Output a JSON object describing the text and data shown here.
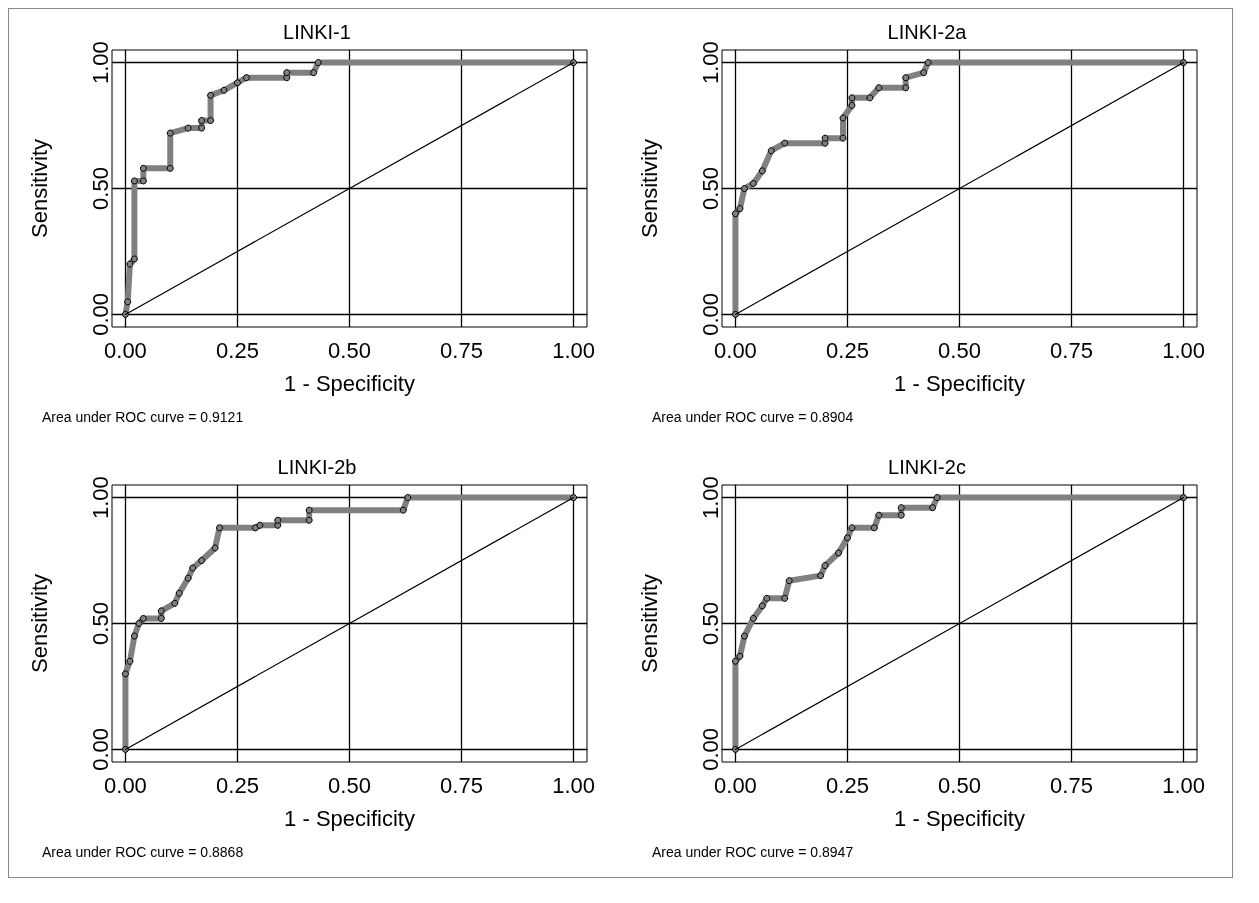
{
  "chart_data": [
    {
      "type": "line",
      "title": "LINKI-1",
      "xlabel": "1 - Specificity",
      "ylabel": "Sensitivity",
      "xlim": [
        -0.03,
        1.03
      ],
      "ylim": [
        -0.05,
        1.05
      ],
      "xticks": [
        {
          "value": 0,
          "label": "0.00"
        },
        {
          "value": 0.25,
          "label": "0.25"
        },
        {
          "value": 0.5,
          "label": "0.50"
        },
        {
          "value": 0.75,
          "label": "0.75"
        },
        {
          "value": 1,
          "label": "1.00"
        }
      ],
      "yticks": [
        {
          "value": 0,
          "label": "0.00"
        },
        {
          "value": 0.5,
          "label": "0.50"
        },
        {
          "value": 1,
          "label": "1.00"
        }
      ],
      "grid": true,
      "annotations": [
        "Area under ROC curve = 0.9121"
      ],
      "series": [
        {
          "color": "#808080",
          "marker": "circle",
          "x": [
            0,
            0.005,
            0.01,
            0.02,
            0.02,
            0.04,
            0.04,
            0.1,
            0.1,
            0.14,
            0.17,
            0.17,
            0.19,
            0.19,
            0.22,
            0.25,
            0.27,
            0.36,
            0.36,
            0.42,
            0.43,
            1
          ],
          "values": [
            0,
            0.05,
            0.2,
            0.22,
            0.53,
            0.53,
            0.58,
            0.58,
            0.72,
            0.74,
            0.74,
            0.77,
            0.77,
            0.87,
            0.89,
            0.92,
            0.94,
            0.94,
            0.96,
            0.96,
            1,
            1
          ]
        },
        {
          "color": "#000000",
          "marker": "none",
          "x": [
            0,
            1
          ],
          "values": [
            0,
            1
          ]
        }
      ]
    },
    {
      "type": "line",
      "title": "LINKI-2a",
      "xlabel": "1 - Specificity",
      "ylabel": "Sensitivity",
      "xlim": [
        -0.03,
        1.03
      ],
      "ylim": [
        -0.05,
        1.05
      ],
      "xticks": [
        {
          "value": 0,
          "label": "0.00"
        },
        {
          "value": 0.25,
          "label": "0.25"
        },
        {
          "value": 0.5,
          "label": "0.50"
        },
        {
          "value": 0.75,
          "label": "0.75"
        },
        {
          "value": 1,
          "label": "1.00"
        }
      ],
      "yticks": [
        {
          "value": 0,
          "label": "0.00"
        },
        {
          "value": 0.5,
          "label": "0.50"
        },
        {
          "value": 1,
          "label": "1.00"
        }
      ],
      "grid": true,
      "annotations": [
        "Area under ROC curve = 0.8904"
      ],
      "series": [
        {
          "color": "#808080",
          "marker": "circle",
          "x": [
            0,
            0,
            0.01,
            0.02,
            0.04,
            0.06,
            0.08,
            0.11,
            0.2,
            0.2,
            0.24,
            0.24,
            0.26,
            0.26,
            0.3,
            0.32,
            0.38,
            0.38,
            0.42,
            0.43,
            1
          ],
          "values": [
            0,
            0.4,
            0.42,
            0.5,
            0.52,
            0.57,
            0.65,
            0.68,
            0.68,
            0.7,
            0.7,
            0.78,
            0.83,
            0.86,
            0.86,
            0.9,
            0.9,
            0.94,
            0.96,
            1,
            1
          ]
        },
        {
          "color": "#000000",
          "marker": "none",
          "x": [
            0,
            1
          ],
          "values": [
            0,
            1
          ]
        }
      ]
    },
    {
      "type": "line",
      "title": "LINKI-2b",
      "xlabel": "1 - Specificity",
      "ylabel": "Sensitivity",
      "xlim": [
        -0.03,
        1.03
      ],
      "ylim": [
        -0.05,
        1.05
      ],
      "xticks": [
        {
          "value": 0,
          "label": "0.00"
        },
        {
          "value": 0.25,
          "label": "0.25"
        },
        {
          "value": 0.5,
          "label": "0.50"
        },
        {
          "value": 0.75,
          "label": "0.75"
        },
        {
          "value": 1,
          "label": "1.00"
        }
      ],
      "yticks": [
        {
          "value": 0,
          "label": "0.00"
        },
        {
          "value": 0.5,
          "label": "0.50"
        },
        {
          "value": 1,
          "label": "1.00"
        }
      ],
      "grid": true,
      "annotations": [
        "Area under ROC curve = 0.8868"
      ],
      "series": [
        {
          "color": "#808080",
          "marker": "circle",
          "x": [
            0,
            0,
            0.01,
            0.02,
            0.03,
            0.04,
            0.08,
            0.08,
            0.11,
            0.12,
            0.14,
            0.15,
            0.17,
            0.2,
            0.21,
            0.29,
            0.3,
            0.34,
            0.34,
            0.41,
            0.41,
            0.62,
            0.63,
            1
          ],
          "values": [
            0,
            0.3,
            0.35,
            0.45,
            0.5,
            0.52,
            0.52,
            0.55,
            0.58,
            0.62,
            0.68,
            0.72,
            0.75,
            0.8,
            0.88,
            0.88,
            0.89,
            0.89,
            0.91,
            0.91,
            0.95,
            0.95,
            1,
            1
          ]
        },
        {
          "color": "#000000",
          "marker": "none",
          "x": [
            0,
            1
          ],
          "values": [
            0,
            1
          ]
        }
      ]
    },
    {
      "type": "line",
      "title": "LINKI-2c",
      "xlabel": "1 - Specificity",
      "ylabel": "Sensitivity",
      "xlim": [
        -0.03,
        1.03
      ],
      "ylim": [
        -0.05,
        1.05
      ],
      "xticks": [
        {
          "value": 0,
          "label": "0.00"
        },
        {
          "value": 0.25,
          "label": "0.25"
        },
        {
          "value": 0.5,
          "label": "0.50"
        },
        {
          "value": 0.75,
          "label": "0.75"
        },
        {
          "value": 1,
          "label": "1.00"
        }
      ],
      "yticks": [
        {
          "value": 0,
          "label": "0.00"
        },
        {
          "value": 0.5,
          "label": "0.50"
        },
        {
          "value": 1,
          "label": "1.00"
        }
      ],
      "grid": true,
      "annotations": [
        "Area under ROC curve = 0.8947"
      ],
      "series": [
        {
          "color": "#808080",
          "marker": "circle",
          "x": [
            0,
            0,
            0.01,
            0.02,
            0.04,
            0.06,
            0.07,
            0.11,
            0.12,
            0.19,
            0.2,
            0.23,
            0.25,
            0.26,
            0.31,
            0.32,
            0.37,
            0.37,
            0.44,
            0.45,
            1
          ],
          "values": [
            0,
            0.35,
            0.37,
            0.45,
            0.52,
            0.57,
            0.6,
            0.6,
            0.67,
            0.69,
            0.73,
            0.78,
            0.84,
            0.88,
            0.88,
            0.93,
            0.93,
            0.96,
            0.96,
            1,
            1
          ]
        },
        {
          "color": "#000000",
          "marker": "none",
          "x": [
            0,
            1
          ],
          "values": [
            0,
            1
          ]
        }
      ]
    }
  ]
}
